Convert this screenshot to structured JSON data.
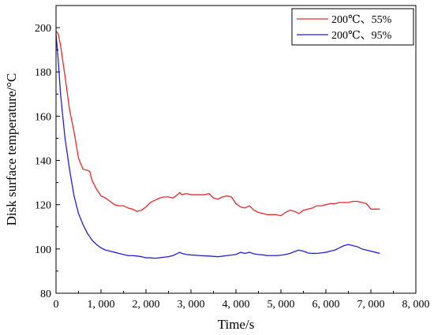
{
  "chart_data": {
    "type": "line",
    "title": "",
    "xlabel": "Time/s",
    "ylabel": "Disk surface temperature/°C",
    "xlim": [
      0,
      8000
    ],
    "ylim": [
      80,
      210
    ],
    "xticks": [
      0,
      1000,
      2000,
      3000,
      4000,
      5000,
      6000,
      7000,
      8000
    ],
    "xtick_labels": [
      "0",
      "1, 000",
      "2, 000",
      "3, 000",
      "4, 000",
      "5, 000",
      "6, 000",
      "7, 000",
      "8, 000"
    ],
    "yticks": [
      80,
      100,
      120,
      140,
      160,
      180,
      200
    ],
    "ytick_labels": [
      "80",
      "100",
      "120",
      "140",
      "160",
      "180",
      "200"
    ],
    "grid": false,
    "legend_position": "top-right",
    "series": [
      {
        "name": "200℃、55%",
        "color": "#e8292b",
        "x": [
          0,
          50,
          100,
          200,
          300,
          400,
          500,
          600,
          700,
          750,
          800,
          900,
          1000,
          1100,
          1200,
          1300,
          1400,
          1500,
          1600,
          1700,
          1800,
          1900,
          2000,
          2100,
          2200,
          2300,
          2400,
          2500,
          2600,
          2700,
          2750,
          2800,
          2900,
          3000,
          3100,
          3200,
          3300,
          3400,
          3500,
          3600,
          3700,
          3800,
          3900,
          4000,
          4100,
          4200,
          4300,
          4400,
          4500,
          4600,
          4700,
          4800,
          4900,
          5000,
          5100,
          5200,
          5300,
          5400,
          5500,
          5600,
          5700,
          5800,
          5900,
          6000,
          6100,
          6200,
          6300,
          6400,
          6500,
          6600,
          6700,
          6800,
          6900,
          7000,
          7100,
          7200
        ],
        "values": [
          198.5,
          197,
          192,
          178,
          163,
          153,
          141,
          136,
          135.5,
          135,
          131,
          127,
          124,
          123,
          121.5,
          120,
          119.5,
          119.5,
          118.5,
          118,
          117,
          117.5,
          119,
          121,
          122,
          123,
          123.5,
          123.5,
          123,
          124.5,
          125.5,
          124.5,
          125,
          124.5,
          124.5,
          124.5,
          124.5,
          125,
          123,
          122.5,
          123.5,
          124,
          123.5,
          120.5,
          119,
          118.5,
          119.5,
          117.5,
          116.5,
          116,
          115.5,
          115.5,
          115.5,
          115,
          116.5,
          117.5,
          117,
          116,
          117.5,
          118,
          118.5,
          119.5,
          119.5,
          120,
          120.5,
          120.5,
          121,
          121,
          121,
          121.5,
          121.5,
          121,
          120.5,
          118,
          118,
          118
        ]
      },
      {
        "name": "200℃、95%",
        "color": "#2121d6",
        "x": [
          0,
          50,
          100,
          200,
          300,
          400,
          500,
          600,
          700,
          800,
          900,
          1000,
          1100,
          1200,
          1300,
          1400,
          1500,
          1600,
          1700,
          1800,
          1900,
          2000,
          2100,
          2200,
          2300,
          2400,
          2500,
          2600,
          2700,
          2750,
          2800,
          2900,
          3000,
          3200,
          3400,
          3600,
          3800,
          4000,
          4100,
          4200,
          4300,
          4400,
          4500,
          4600,
          4700,
          4800,
          4900,
          5000,
          5100,
          5200,
          5300,
          5400,
          5500,
          5600,
          5700,
          5800,
          5900,
          6000,
          6100,
          6200,
          6300,
          6400,
          6500,
          6600,
          6700,
          6800,
          6900,
          7000,
          7100,
          7200
        ],
        "values": [
          197,
          185,
          170,
          150,
          136,
          124,
          116,
          111,
          107,
          104,
          102,
          100.5,
          99.5,
          99,
          98.5,
          98,
          97.5,
          97,
          97,
          96.8,
          96.5,
          96,
          96,
          95.8,
          96,
          96.3,
          96.5,
          97,
          98,
          98.5,
          98,
          97.5,
          97.3,
          97,
          96.8,
          96.5,
          97,
          97.5,
          98.5,
          98,
          98.5,
          97.8,
          97.5,
          97.3,
          97,
          97,
          97,
          97.2,
          97.5,
          98,
          98.8,
          99.5,
          99,
          98.2,
          98,
          98,
          98.2,
          98.5,
          99,
          99.5,
          100.5,
          101.5,
          102,
          101.5,
          101,
          100,
          99.5,
          99,
          98.5,
          98
        ]
      }
    ]
  }
}
